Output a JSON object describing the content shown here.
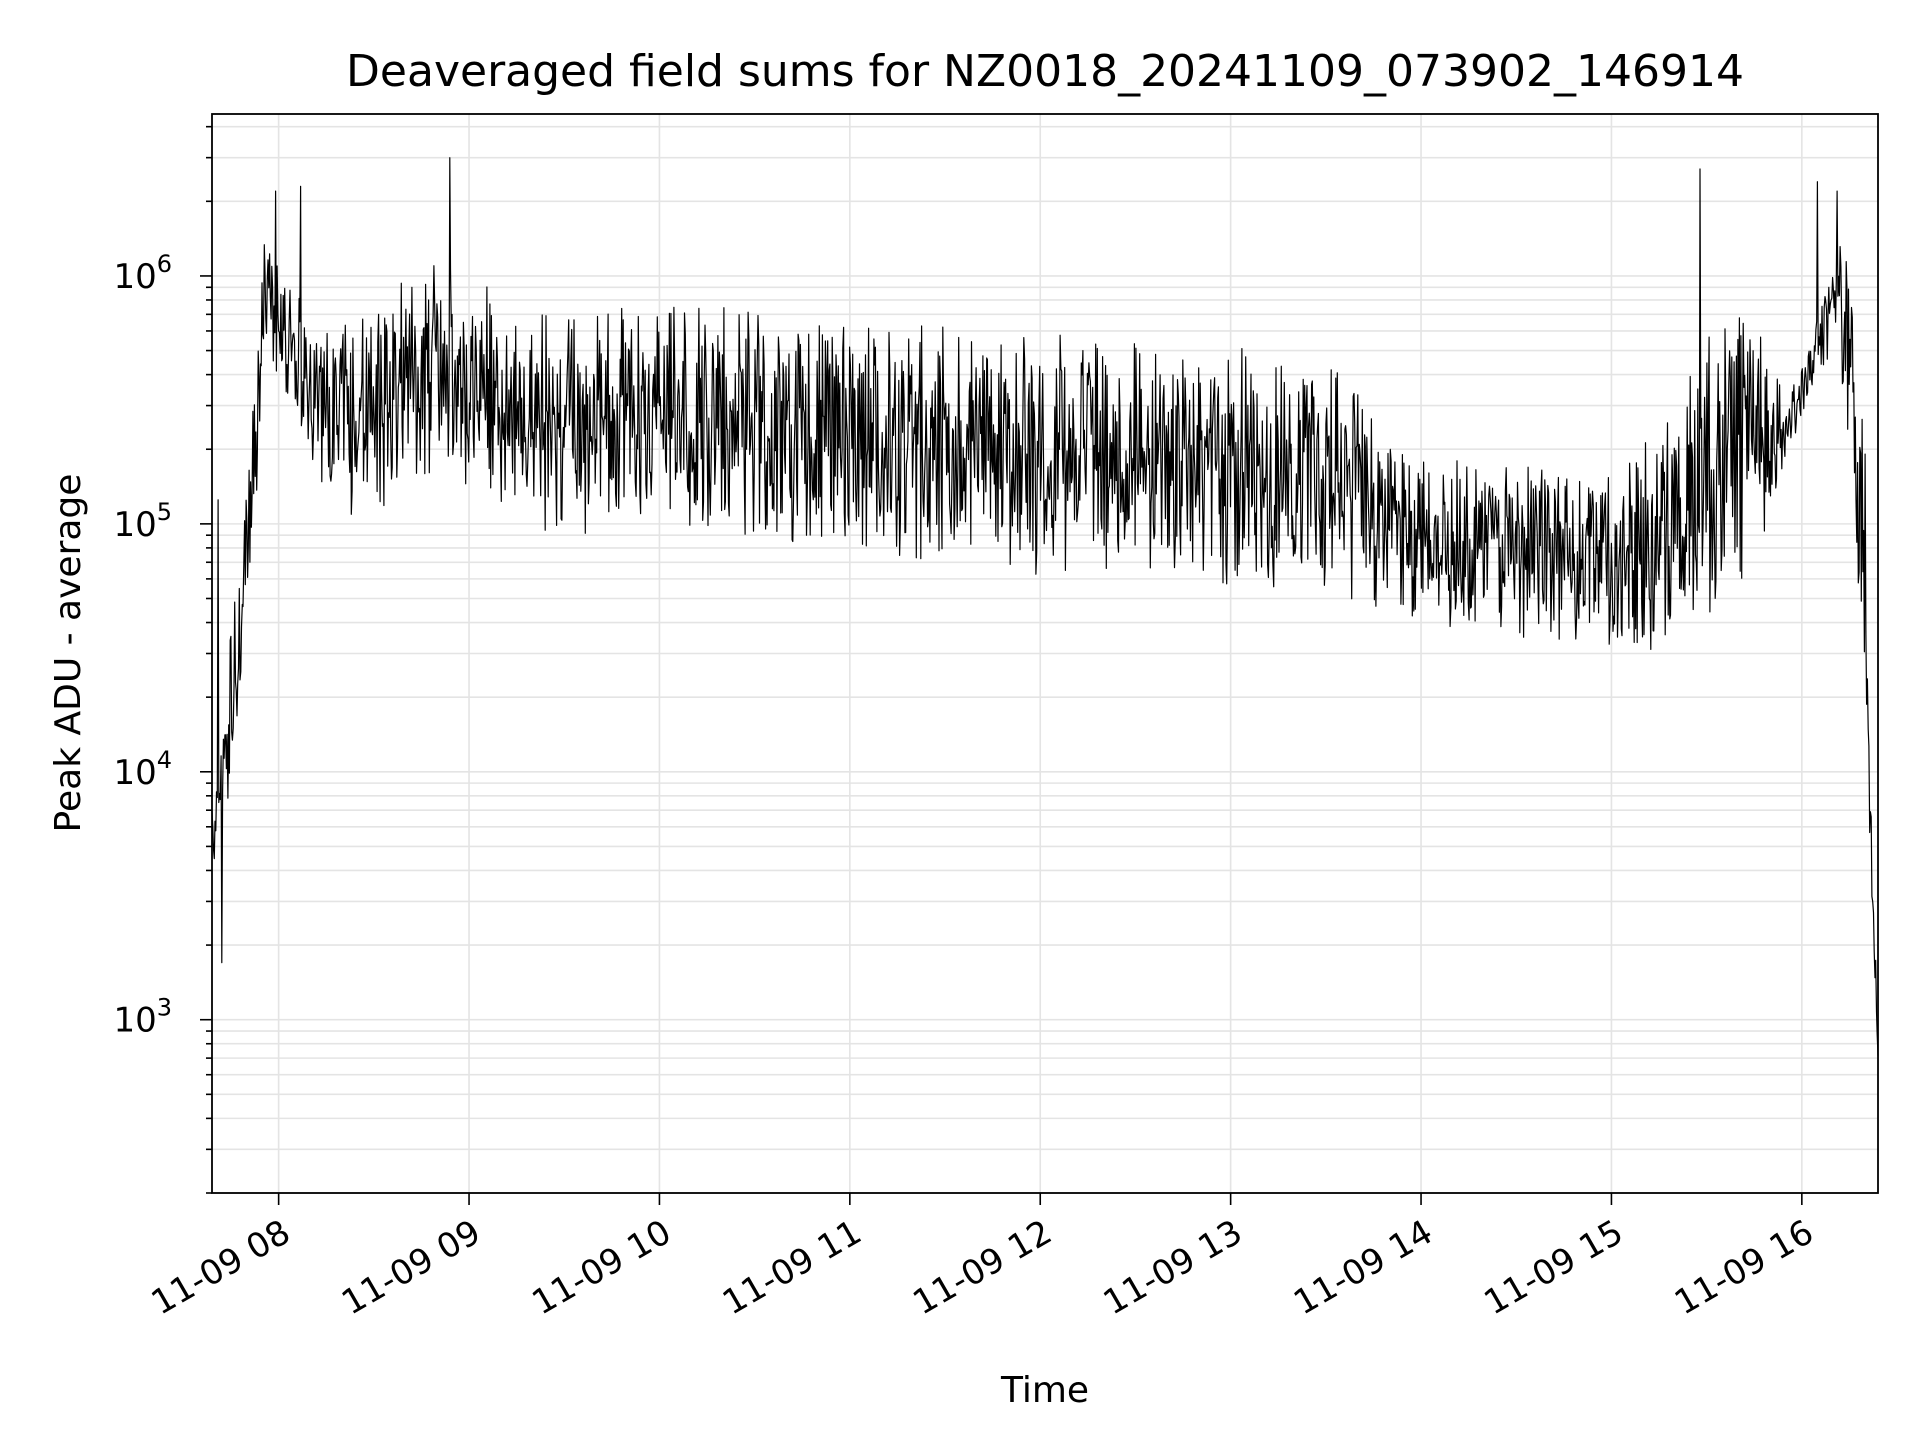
{
  "chart_data": {
    "type": "line",
    "title": "Deaveraged field sums for NZ0018_20241109_073902_146914",
    "xlabel": "Time",
    "ylabel": "Peak ADU - average",
    "y_scale": "log",
    "ylim": [
      200,
      4500000
    ],
    "xlim": [
      "2024-11-09 07:39",
      "2024-11-09 16:24"
    ],
    "grid": true,
    "x_ticks": [
      {
        "time": "2024-11-09 08:00",
        "label": "11-09 08"
      },
      {
        "time": "2024-11-09 09:00",
        "label": "11-09 09"
      },
      {
        "time": "2024-11-09 10:00",
        "label": "11-09 10"
      },
      {
        "time": "2024-11-09 11:00",
        "label": "11-09 11"
      },
      {
        "time": "2024-11-09 12:00",
        "label": "11-09 12"
      },
      {
        "time": "2024-11-09 13:00",
        "label": "11-09 13"
      },
      {
        "time": "2024-11-09 14:00",
        "label": "11-09 14"
      },
      {
        "time": "2024-11-09 15:00",
        "label": "11-09 15"
      },
      {
        "time": "2024-11-09 16:00",
        "label": "11-09 16"
      }
    ],
    "y_ticks": [
      {
        "value": 1000,
        "base": "10",
        "exp": "3"
      },
      {
        "value": 10000,
        "base": "10",
        "exp": "4"
      },
      {
        "value": 100000,
        "base": "10",
        "exp": "5"
      },
      {
        "value": 1000000,
        "base": "10",
        "exp": "6"
      }
    ],
    "envelope": {
      "x": [
        "2024-11-09 07:39",
        "2024-11-09 07:45",
        "2024-11-09 07:50",
        "2024-11-09 07:55",
        "2024-11-09 08:00",
        "2024-11-09 08:10",
        "2024-11-09 08:20",
        "2024-11-09 08:30",
        "2024-11-09 08:45",
        "2024-11-09 09:00",
        "2024-11-09 09:15",
        "2024-11-09 09:30",
        "2024-11-09 10:00",
        "2024-11-09 10:30",
        "2024-11-09 11:00",
        "2024-11-09 11:30",
        "2024-11-09 12:00",
        "2024-11-09 12:30",
        "2024-11-09 13:00",
        "2024-11-09 13:30",
        "2024-11-09 13:45",
        "2024-11-09 14:00",
        "2024-11-09 14:30",
        "2024-11-09 15:00",
        "2024-11-09 15:15",
        "2024-11-09 15:30",
        "2024-11-09 15:45",
        "2024-11-09 15:55",
        "2024-11-09 16:05",
        "2024-11-09 16:10",
        "2024-11-09 16:14",
        "2024-11-09 16:20",
        "2024-11-09 16:22",
        "2024-11-09 16:24"
      ],
      "low": [
        3000,
        8000,
        25000,
        300000,
        400000,
        150000,
        100000,
        110000,
        150000,
        130000,
        100000,
        90000,
        90000,
        85000,
        75000,
        70000,
        60000,
        55000,
        55000,
        55000,
        45000,
        38000,
        35000,
        32000,
        30000,
        40000,
        60000,
        180000,
        400000,
        500000,
        200000,
        15000,
        3000,
        600
      ],
      "high": [
        10000,
        40000,
        150000,
        1400000,
        1200000,
        700000,
        700000,
        800000,
        1200000,
        1000000,
        800000,
        700000,
        800000,
        750000,
        700000,
        650000,
        600000,
        550000,
        550000,
        450000,
        300000,
        180000,
        180000,
        180000,
        250000,
        600000,
        900000,
        300000,
        700000,
        1300000,
        1400000,
        300000,
        5000,
        1000
      ]
    },
    "spikes": [
      {
        "x": "2024-11-09 08:54",
        "y": 3000000
      },
      {
        "x": "2024-11-09 15:28",
        "y": 2700000
      },
      {
        "x": "2024-11-09 16:05",
        "y": 2400000
      },
      {
        "x": "2024-11-09 16:11",
        "y": 2200000
      },
      {
        "x": "2024-11-09 07:59",
        "y": 2200000
      },
      {
        "x": "2024-11-09 08:07",
        "y": 2300000
      },
      {
        "x": "2024-11-09 07:42",
        "y": 1700
      },
      {
        "x": "2024-11-09 07:41",
        "y": 125000
      }
    ]
  }
}
